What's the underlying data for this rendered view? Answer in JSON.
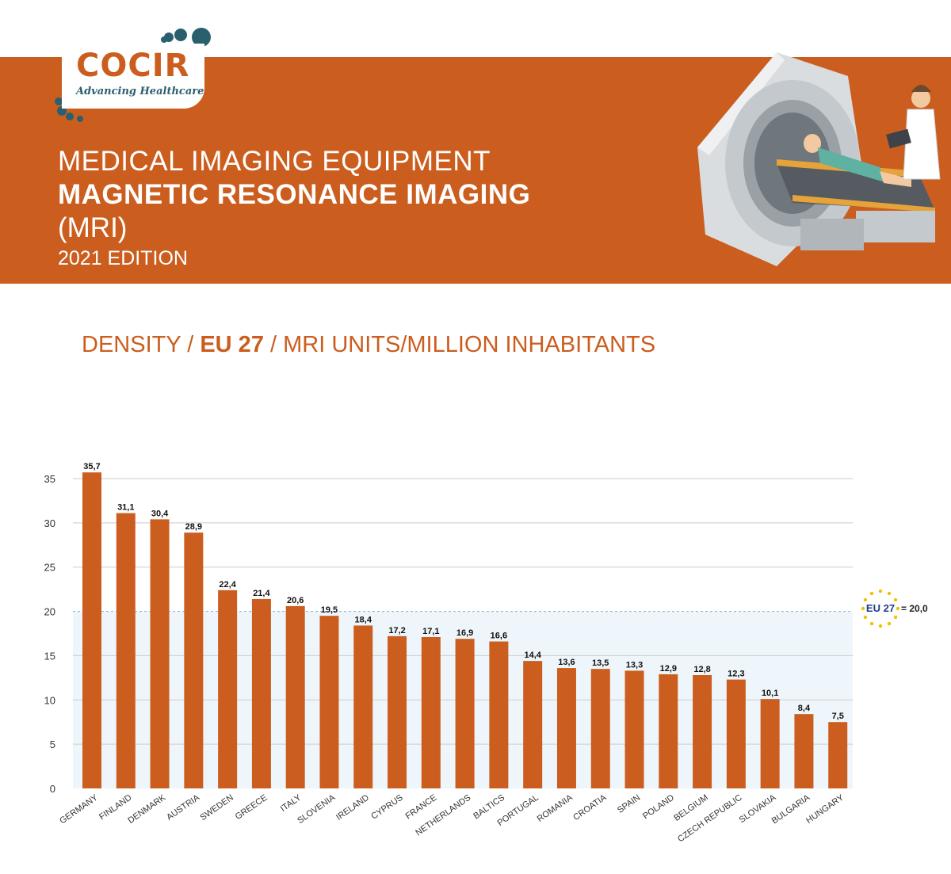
{
  "logo": {
    "word": "COCIR",
    "tagline": "Advancing Healthcare"
  },
  "header": {
    "line1": "MEDICAL IMAGING EQUIPMENT",
    "line2": "MAGNETIC RESONANCE IMAGING",
    "line3": "(MRI)",
    "line4": "2021 EDITION"
  },
  "subtitle": {
    "part1": "DENSITY / ",
    "part2": "EU 27",
    "part3": " / MRI UNITS/MILLION INHABITANTS"
  },
  "colors": {
    "accent": "#cb5e1f",
    "teal": "#2a5f6e",
    "plot_bg": "#eef6fb",
    "reference_line": "#7fb3d5"
  },
  "reference": {
    "label": "EU 27",
    "value_text": "= 20,0",
    "value": 20.0
  },
  "chart_data": {
    "type": "bar",
    "categories": [
      "GERMANY",
      "FINLAND",
      "DENMARK",
      "AUSTRIA",
      "SWEDEN",
      "GREECE",
      "ITALY",
      "SLOVENIA",
      "IRELAND",
      "CYPRUS",
      "FRANCE",
      "NETHERLANDS",
      "BALTICS",
      "PORTUGAL",
      "ROMANIA",
      "CROATIA",
      "SPAIN",
      "POLAND",
      "BELGIUM",
      "CZECH REPUBLIC",
      "SLOVAKIA",
      "BULGARIA",
      "HUNGARY"
    ],
    "values": [
      35.7,
      31.1,
      30.4,
      28.9,
      22.4,
      21.4,
      20.6,
      19.5,
      18.4,
      17.2,
      17.1,
      16.9,
      16.6,
      14.4,
      13.6,
      13.5,
      13.3,
      12.9,
      12.8,
      12.3,
      10.1,
      8.4,
      7.5
    ],
    "value_labels": [
      "35,7",
      "31,1",
      "30,4",
      "28,9",
      "22,4",
      "21,4",
      "20,6",
      "19,5",
      "18,4",
      "17,2",
      "17,1",
      "16,9",
      "16,6",
      "14,4",
      "13,6",
      "13,5",
      "13,3",
      "12,9",
      "12,8",
      "12,3",
      "10,1",
      "8,4",
      "7,5"
    ],
    "yticks": [
      0,
      5,
      10,
      15,
      20,
      25,
      30,
      35
    ],
    "ylim": [
      0,
      37
    ],
    "grid": true,
    "title": "",
    "xlabel": "",
    "ylabel": ""
  }
}
